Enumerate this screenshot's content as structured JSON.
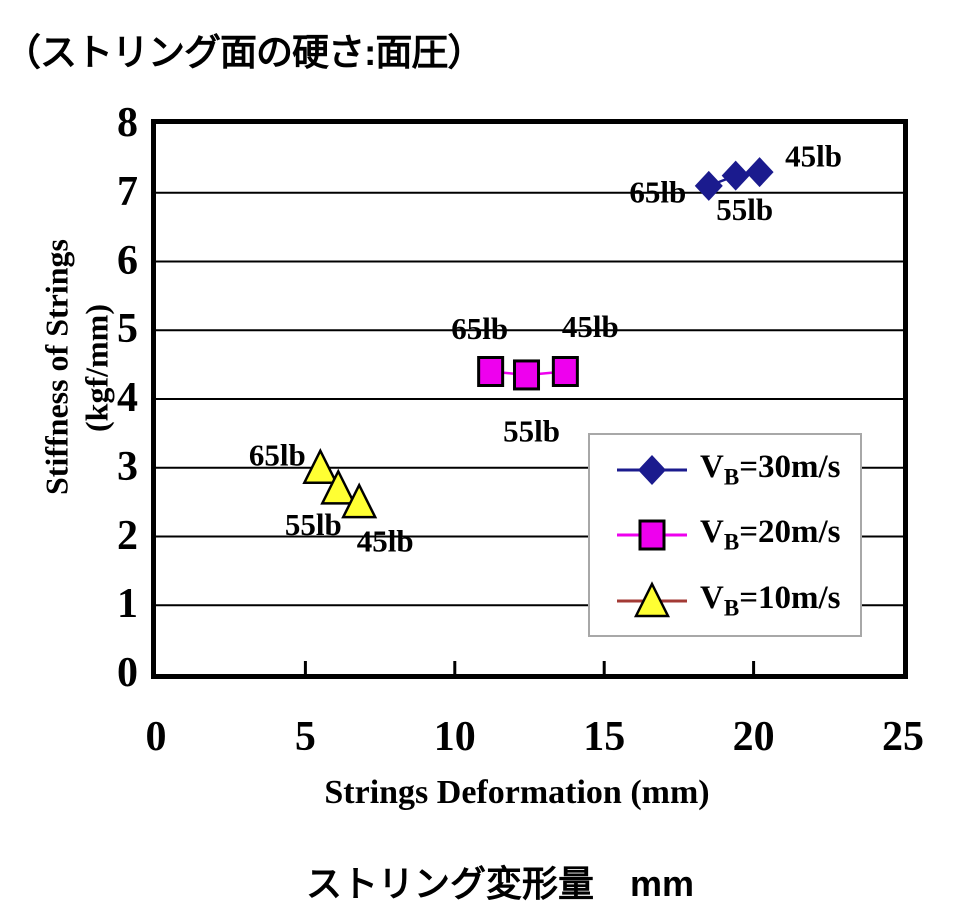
{
  "page_title": "（ストリング面の硬さ:面圧）",
  "chart_data": {
    "type": "scatter",
    "title": "（ストリング面の硬さ:面圧）",
    "xlabel": "Strings Deformation (mm)",
    "xlabel_ja": "ストリング変形量　mm",
    "ylabel": "Stiffness of Strings",
    "ylabel_units": "(kgf/mm)",
    "xlim": [
      0,
      25
    ],
    "ylim": [
      0,
      8
    ],
    "xticks": [
      0,
      5,
      10,
      15,
      20,
      25
    ],
    "yticks": [
      0,
      1,
      2,
      3,
      4,
      5,
      6,
      7,
      8
    ],
    "grid": "horizontal black gridlines at every integer y value",
    "legend_position": "inside lower-right",
    "frame_color": "#000000",
    "series": [
      {
        "name": "VB=30m/s",
        "legend": {
          "v": "V",
          "sub": "B",
          "rest": "=30m/s"
        },
        "marker": "diamond",
        "color": "#1b1b8e",
        "line_color": "#1b1b8e",
        "points": [
          {
            "x": 18.5,
            "y": 7.1,
            "label": "65lb",
            "label_dx": -51,
            "label_dy": 6
          },
          {
            "x": 19.4,
            "y": 7.25,
            "label": "55lb",
            "label_dx": 9,
            "label_dy": 34
          },
          {
            "x": 20.2,
            "y": 7.3,
            "label": "45lb",
            "label_dx": 54,
            "label_dy": -16
          }
        ]
      },
      {
        "name": "VB=20m/s",
        "legend": {
          "v": "V",
          "sub": "B",
          "rest": "=20m/s"
        },
        "marker": "square",
        "color": "#ee00ee",
        "line_color": "#ee00ee",
        "points": [
          {
            "x": 11.2,
            "y": 4.4,
            "label": "65lb",
            "label_dx": -11,
            "label_dy": -43
          },
          {
            "x": 12.4,
            "y": 4.35,
            "label": "55lb",
            "label_dx": 5,
            "label_dy": 56
          },
          {
            "x": 13.7,
            "y": 4.4,
            "label": "45lb",
            "label_dx": 25,
            "label_dy": -45
          }
        ]
      },
      {
        "name": "VB=10m/s",
        "legend": {
          "v": "V",
          "sub": "B",
          "rest": "=10m/s"
        },
        "marker": "triangle",
        "color": "#ffff33",
        "line_color": "#a33a35",
        "points": [
          {
            "x": 5.5,
            "y": 3.0,
            "label": "65lb",
            "label_dx": -43,
            "label_dy": -13
          },
          {
            "x": 6.1,
            "y": 2.7,
            "label": "55lb",
            "label_dx": -25,
            "label_dy": 36
          },
          {
            "x": 6.8,
            "y": 2.5,
            "label": "45lb",
            "label_dx": 26,
            "label_dy": 39
          }
        ]
      }
    ]
  }
}
